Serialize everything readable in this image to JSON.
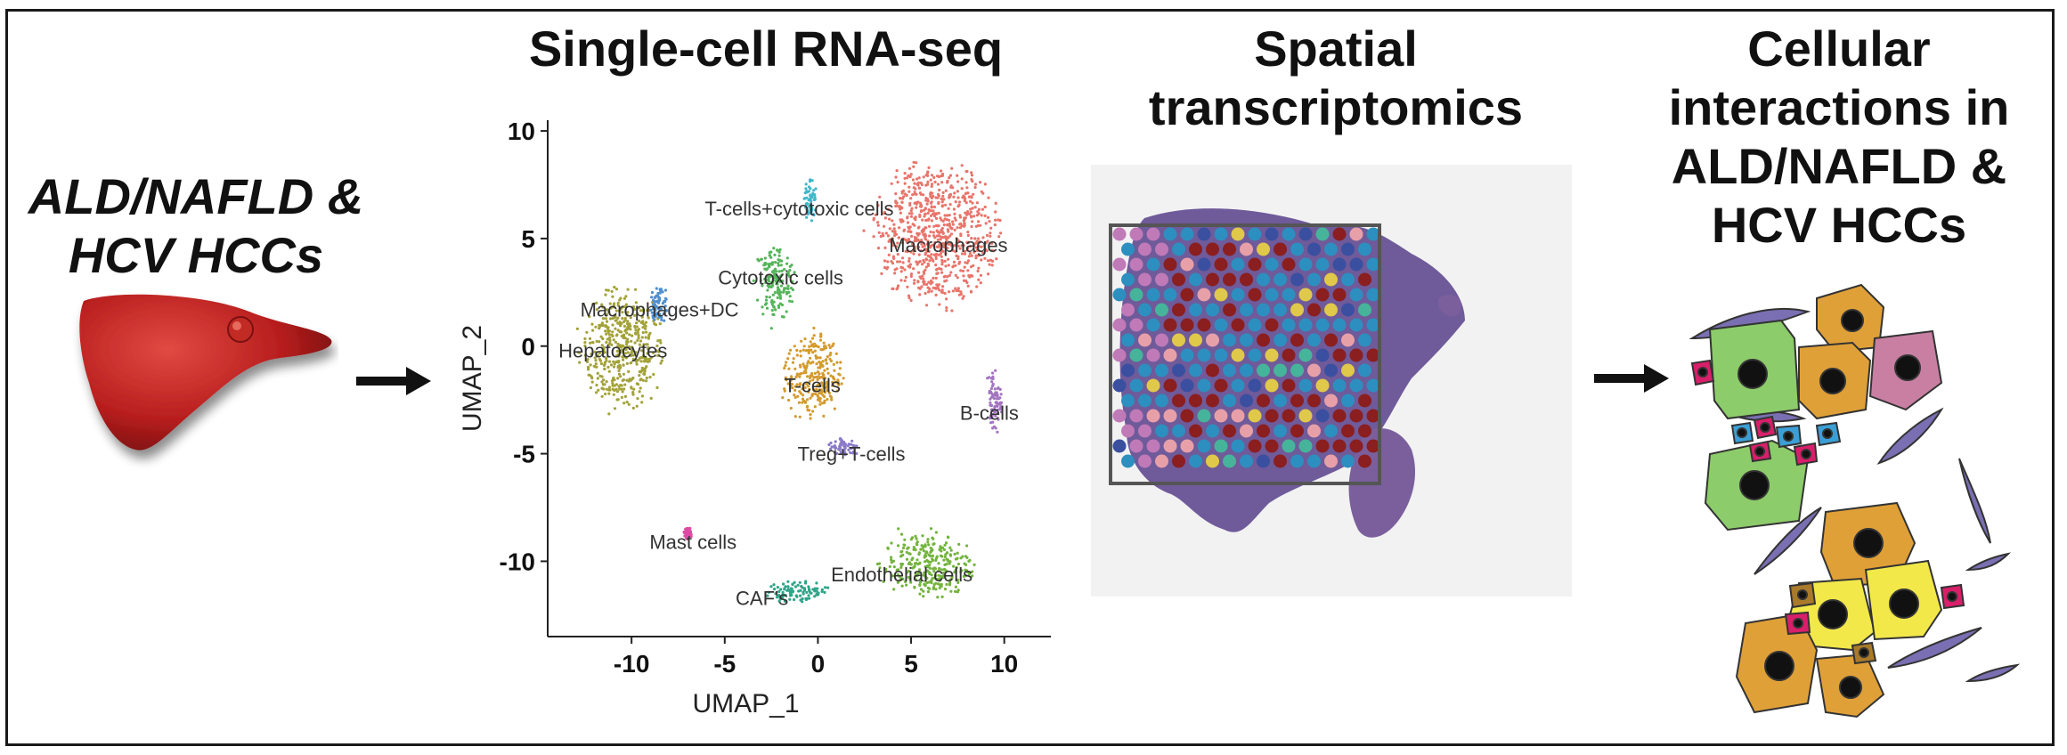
{
  "panels": {
    "left_title": [
      "ALD/NAFLD &",
      "HCV HCCs"
    ],
    "scrna_title": "Single-cell RNA-seq",
    "spatial_title": [
      "Spatial",
      "transcriptomics"
    ],
    "interactions_title": [
      "Cellular",
      "interactions in",
      "ALD/NAFLD &",
      "HCV HCCs"
    ]
  },
  "chart_data": {
    "type": "scatter",
    "xlabel": "UMAP_1",
    "ylabel": "UMAP_2",
    "xlim": [
      -14.5,
      12.5
    ],
    "ylim": [
      -13.5,
      10.5
    ],
    "x_ticks": [
      -10,
      -5,
      0,
      5,
      10
    ],
    "y_ticks": [
      10,
      5,
      0,
      -5,
      -10
    ],
    "grid": false,
    "clusters": [
      {
        "label": "Hepatocytes",
        "color": "#a3a23a",
        "cx": -10.5,
        "cy": -0.2,
        "rx": 2.3,
        "ry": 2.9,
        "label_x": -11.0,
        "label_y": -0.2
      },
      {
        "label": "Macrophages+DC",
        "color": "#4f8fcf",
        "cx": -8.5,
        "cy": 2.0,
        "rx": 0.5,
        "ry": 0.9,
        "label_x": -8.5,
        "label_y": 1.7
      },
      {
        "label": "Cytotoxic cells",
        "color": "#55b55a",
        "cx": -2.3,
        "cy": 3.0,
        "rx": 1.1,
        "ry": 1.8,
        "label_x": -2.0,
        "label_y": 3.2
      },
      {
        "label": "T-cells+cytotoxic cells",
        "color": "#3fb7c9",
        "cx": -0.4,
        "cy": 6.8,
        "rx": 0.35,
        "ry": 1.0,
        "label_x": -1.0,
        "label_y": 6.4
      },
      {
        "label": "Macrophages",
        "color": "#e8756b",
        "cx": 6.3,
        "cy": 5.2,
        "rx": 3.4,
        "ry": 3.5,
        "label_x": 7.0,
        "label_y": 4.7
      },
      {
        "label": "T-cells",
        "color": "#d49a2e",
        "cx": -0.3,
        "cy": -1.4,
        "rx": 1.6,
        "ry": 2.2,
        "label_x": -0.3,
        "label_y": -1.8
      },
      {
        "label": "Treg+T-cells",
        "color": "#8a7ac8",
        "cx": 1.4,
        "cy": -4.7,
        "rx": 0.8,
        "ry": 0.45,
        "label_x": 1.8,
        "label_y": -5.0
      },
      {
        "label": "B-cells",
        "color": "#a374c0",
        "cx": 9.5,
        "cy": -2.5,
        "rx": 0.4,
        "ry": 1.6,
        "label_x": 9.2,
        "label_y": -3.1
      },
      {
        "label": "Mast cells",
        "color": "#dd4ba4",
        "cx": -7.0,
        "cy": -8.7,
        "rx": 0.25,
        "ry": 0.3,
        "label_x": -6.7,
        "label_y": -9.1
      },
      {
        "label": "CAF's",
        "color": "#2fa489",
        "cx": -1.2,
        "cy": -11.4,
        "rx": 1.8,
        "ry": 0.5,
        "label_x": -3.0,
        "label_y": -11.7
      },
      {
        "label": "Endothelial cells",
        "color": "#73b43d",
        "cx": 5.8,
        "cy": -10.2,
        "rx": 2.5,
        "ry": 1.6,
        "label_x": 4.5,
        "label_y": -10.6
      }
    ]
  },
  "colors": {
    "liver": "#b02020",
    "spot_palette": [
      "#8b1e1e",
      "#2c8fbf",
      "#3a4fa0",
      "#e0c84a",
      "#c07ab8",
      "#e8a0a8",
      "#46b49a",
      "#6a3a8a"
    ],
    "cell_green": "#8dcc6a",
    "cell_orange": "#e0a038",
    "cell_pink": "#c87fa2",
    "cell_yellow": "#f2e84a",
    "cell_magenta": "#d81f6a",
    "cell_blue": "#3b9fd6",
    "spindle": "#7a6fb2",
    "small_brown": "#a87a2a"
  }
}
